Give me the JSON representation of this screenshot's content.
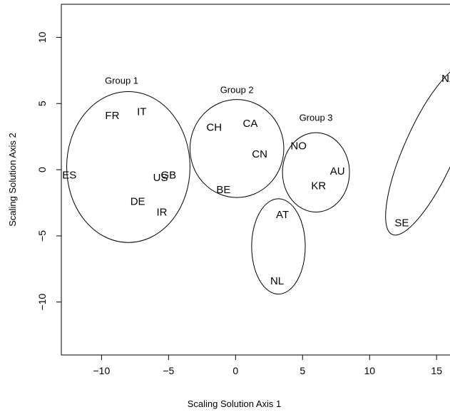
{
  "chart_data": {
    "type": "scatter",
    "title": "",
    "xlabel": "Scaling Solution Axis 1",
    "ylabel": "Scaling Solution Axis 2",
    "xlim": [
      -13,
      16
    ],
    "ylim": [
      -14,
      12.5
    ],
    "x_ticks": [
      -10,
      -5,
      0,
      5,
      10,
      15
    ],
    "y_ticks": [
      -10,
      -5,
      0,
      5,
      10
    ],
    "x_tick_labels": [
      "−10",
      "−5",
      "0",
      "5",
      "10",
      "15"
    ],
    "y_tick_labels": [
      "−10",
      "−5",
      "0",
      "5",
      "10"
    ],
    "points": [
      {
        "label": "FR",
        "x": -9.2,
        "y": 4.1
      },
      {
        "label": "IT",
        "x": -7.0,
        "y": 4.4
      },
      {
        "label": "ES",
        "x": -12.4,
        "y": -0.4
      },
      {
        "label": "US",
        "x": -5.6,
        "y": -0.6
      },
      {
        "label": "GB",
        "x": -5.0,
        "y": -0.4
      },
      {
        "label": "DE",
        "x": -7.3,
        "y": -2.4
      },
      {
        "label": "IR",
        "x": -5.5,
        "y": -3.2
      },
      {
        "label": "CH",
        "x": -1.6,
        "y": 3.2
      },
      {
        "label": "CA",
        "x": 1.1,
        "y": 3.5
      },
      {
        "label": "CN",
        "x": 1.8,
        "y": 1.2
      },
      {
        "label": "BE",
        "x": -0.9,
        "y": -1.5
      },
      {
        "label": "NO",
        "x": 4.7,
        "y": 1.8
      },
      {
        "label": "AU",
        "x": 7.6,
        "y": -0.1
      },
      {
        "label": "KR",
        "x": 6.2,
        "y": -1.2
      },
      {
        "label": "AT",
        "x": 3.5,
        "y": -3.4
      },
      {
        "label": "NL",
        "x": 3.1,
        "y": -8.4
      },
      {
        "label": "SE",
        "x": 12.4,
        "y": -4.0
      },
      {
        "label": "NZ",
        "x": 15.9,
        "y": 6.9
      }
    ],
    "groups": [
      {
        "label": "Group 1",
        "cx": -8.0,
        "cy": 0.2,
        "rx": 4.6,
        "ry": 5.7,
        "angle": 0,
        "label_x": -8.5,
        "label_y": 6.5
      },
      {
        "label": "Group 2",
        "cx": 0.1,
        "cy": 1.6,
        "rx": 3.5,
        "ry": 3.7,
        "angle": 0,
        "label_x": 0.1,
        "label_y": 5.8
      },
      {
        "label": "Group 3",
        "cx": 6.0,
        "cy": -0.2,
        "rx": 2.5,
        "ry": 3.0,
        "angle": 0,
        "label_x": 6.0,
        "label_y": 3.7
      },
      {
        "label": "",
        "cx": 3.2,
        "cy": -5.8,
        "rx": 2.0,
        "ry": 3.6,
        "angle": 0
      },
      {
        "label": "",
        "cx": 14.5,
        "cy": 1.5,
        "rx": 1.9,
        "ry": 7.0,
        "angle": 24
      }
    ]
  }
}
